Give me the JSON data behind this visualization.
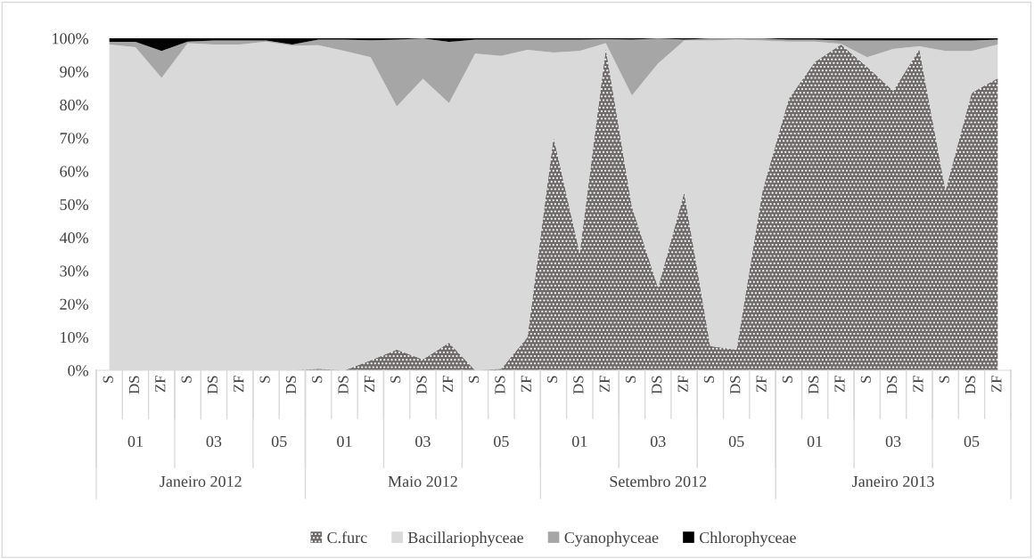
{
  "chart_data": {
    "type": "area",
    "stacked": true,
    "categories": [
      "S",
      "DS",
      "ZF",
      "S",
      "DS",
      "ZF",
      "S",
      "DS",
      "S",
      "DS",
      "ZF",
      "S",
      "DS",
      "ZF",
      "S",
      "DS",
      "ZF",
      "S",
      "DS",
      "ZF",
      "S",
      "DS",
      "ZF",
      "S",
      "DS",
      "ZF",
      "S",
      "DS",
      "ZF",
      "S",
      "DS",
      "ZF",
      "S",
      "DS",
      "ZF"
    ],
    "series": [
      {
        "name": "C.furc",
        "color": "#6f6b6b",
        "values": [
          0,
          0,
          0,
          0,
          0,
          0,
          0,
          0,
          0.5,
          0,
          3,
          6.2,
          3.3,
          8.3,
          0,
          0.5,
          10,
          70.3,
          35.4,
          97,
          49.3,
          24.9,
          53.6,
          7.3,
          6.2,
          54.2,
          81.8,
          92.9,
          98.1,
          91.4,
          84.2,
          96.7,
          54.2,
          83.6,
          88
        ]
      },
      {
        "name": "Bacillariophyceae",
        "color": "#d9d9d9",
        "values": [
          98.1,
          97.3,
          88.1,
          98.5,
          98.1,
          98.1,
          99,
          97.8,
          97.4,
          96.2,
          91.3,
          73.3,
          84.5,
          72.2,
          95.4,
          94.2,
          86.5,
          25.4,
          60.8,
          1.5,
          33.5,
          67.5,
          45.7,
          92,
          93.4,
          45.1,
          17.2,
          6.1,
          0.2,
          2.9,
          12.6,
          0.9,
          42,
          12.6,
          10.1
        ]
      },
      {
        "name": "Cyanophyceae",
        "color": "#a6a6a6",
        "values": [
          0.8,
          1.6,
          8.1,
          0.5,
          1.2,
          1.2,
          0.3,
          0.3,
          1.7,
          3.4,
          5.1,
          20.1,
          12.1,
          18.4,
          4.2,
          4.9,
          3.1,
          3.9,
          3.4,
          1.2,
          16.8,
          7.5,
          0.3,
          0.6,
          0.3,
          0.6,
          0.6,
          0.6,
          1,
          5,
          2.5,
          1.7,
          3.1,
          3.1,
          1.5
        ]
      },
      {
        "name": "Chlorophyceae",
        "color": "#000000",
        "values": [
          1.1,
          1.1,
          3.8,
          1,
          0.7,
          0.7,
          0.7,
          1.9,
          0.4,
          0.4,
          0.6,
          0.4,
          0.1,
          1.1,
          0.4,
          0.4,
          0.4,
          0.4,
          0.4,
          0.3,
          0.4,
          0.1,
          0.4,
          0.1,
          0.1,
          0.1,
          0.4,
          0.4,
          0.7,
          0.7,
          0.7,
          0.7,
          0.7,
          0.7,
          0.4
        ]
      }
    ],
    "ylim": [
      0,
      100
    ],
    "yticks": [
      {
        "value": 0,
        "label": "0%"
      },
      {
        "value": 10,
        "label": "10%"
      },
      {
        "value": 20,
        "label": "20%"
      },
      {
        "value": 30,
        "label": "30%"
      },
      {
        "value": 40,
        "label": "40%"
      },
      {
        "value": 50,
        "label": "50%"
      },
      {
        "value": 60,
        "label": "60%"
      },
      {
        "value": 70,
        "label": "70%"
      },
      {
        "value": 80,
        "label": "80%"
      },
      {
        "value": 90,
        "label": "90%"
      },
      {
        "value": 100,
        "label": "100%"
      }
    ],
    "annotations": [
      "01",
      "03",
      "05",
      "01",
      "03",
      "05",
      "01",
      "03",
      "05",
      "01",
      "03",
      "05",
      "Janeiro 2012",
      "Maio 2012",
      "Setembro 2012",
      "Janeiro 2013"
    ],
    "legend": "bottom",
    "grid": false
  }
}
